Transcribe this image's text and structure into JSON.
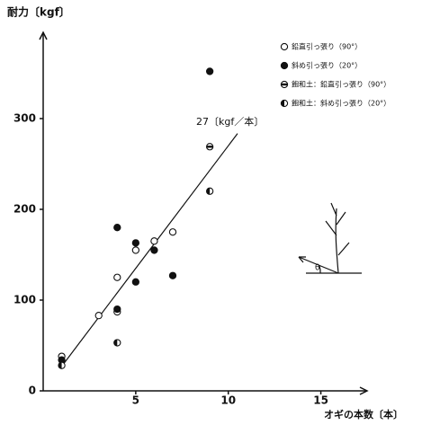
{
  "chart_data": {
    "type": "scatter",
    "y_label": "耐力〔kgf〕",
    "x_label": "オギの本数〔本〕",
    "xlim": [
      0,
      17.5
    ],
    "ylim": [
      0,
      395
    ],
    "xticks": [
      5,
      10,
      15
    ],
    "yticks": [
      0,
      100,
      200,
      300
    ],
    "series": [
      {
        "name": "鉛直引っ張り（90°）",
        "marker": "open",
        "x": [
          1,
          3,
          4,
          4,
          5,
          6,
          7
        ],
        "values": [
          38,
          83,
          125,
          87,
          155,
          165,
          175
        ]
      },
      {
        "name": "斜め引っ張り（20°）",
        "marker": "filled",
        "x": [
          1,
          4,
          4,
          5,
          5,
          6,
          7,
          9
        ],
        "values": [
          34,
          180,
          90,
          163,
          120,
          155,
          127,
          352
        ]
      },
      {
        "name": "飽和土：鉛直引っ張り（90°）",
        "marker": "striped",
        "x": [
          9
        ],
        "values": [
          269
        ]
      },
      {
        "name": "飽和土：斜め引っ張り（20°）",
        "marker": "half",
        "x": [
          1,
          4,
          9
        ],
        "values": [
          28,
          53,
          220
        ]
      }
    ],
    "fit_line": {
      "label": "27〔kgf／本〕",
      "x": [
        1,
        10.5
      ],
      "values": [
        27,
        283.5
      ]
    },
    "inset_label": "θ"
  }
}
